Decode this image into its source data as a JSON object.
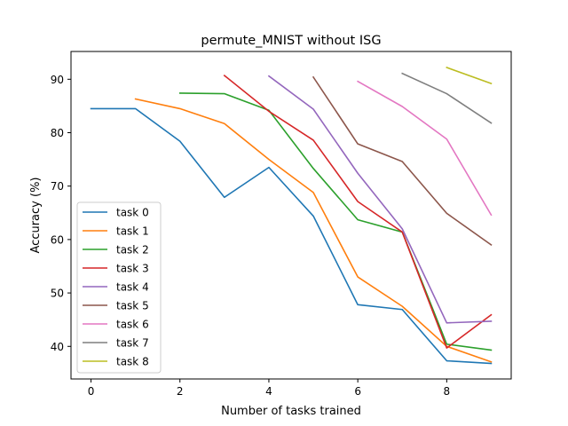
{
  "chart_data": {
    "type": "line",
    "title": "permute_MNIST without ISG",
    "xlabel": "Number of tasks trained",
    "ylabel": "Accuracy (%)",
    "xlim": [
      -0.45,
      9.45
    ],
    "ylim": [
      33.9,
      95.2
    ],
    "xticks": [
      0,
      2,
      4,
      6,
      8
    ],
    "yticks": [
      40,
      50,
      60,
      70,
      80,
      90
    ],
    "grid": false,
    "legend_position": "center-left",
    "series": [
      {
        "name": "task 0",
        "color": "#1f77b4",
        "x": [
          0,
          1,
          2,
          3,
          4,
          5,
          6,
          7,
          8,
          9
        ],
        "y": [
          84.5,
          84.5,
          78.4,
          67.9,
          73.5,
          64.4,
          47.8,
          46.9,
          37.3,
          36.8
        ]
      },
      {
        "name": "task 1",
        "color": "#ff7f0e",
        "x": [
          1,
          2,
          3,
          4,
          5,
          6,
          7,
          8,
          9
        ],
        "y": [
          86.3,
          84.5,
          81.7,
          75.0,
          68.8,
          53.0,
          47.5,
          40.0,
          37.1
        ]
      },
      {
        "name": "task 2",
        "color": "#2ca02c",
        "x": [
          2,
          3,
          4,
          5,
          6,
          7,
          8,
          9
        ],
        "y": [
          87.4,
          87.3,
          84.2,
          73.3,
          63.7,
          61.4,
          40.4,
          39.3
        ]
      },
      {
        "name": "task 3",
        "color": "#d62728",
        "x": [
          3,
          4,
          5,
          6,
          7,
          8,
          9
        ],
        "y": [
          90.7,
          84.0,
          78.6,
          67.1,
          61.4,
          39.7,
          45.9
        ]
      },
      {
        "name": "task 4",
        "color": "#9467bd",
        "x": [
          4,
          5,
          6,
          7,
          8,
          9
        ],
        "y": [
          90.6,
          84.4,
          72.4,
          62.0,
          44.4,
          44.7
        ]
      },
      {
        "name": "task 5",
        "color": "#8c564b",
        "x": [
          5,
          6,
          7,
          8,
          9
        ],
        "y": [
          90.4,
          77.9,
          74.6,
          64.9,
          59.0
        ]
      },
      {
        "name": "task 6",
        "color": "#e377c2",
        "x": [
          6,
          7,
          8,
          9
        ],
        "y": [
          89.6,
          84.9,
          78.8,
          64.6
        ]
      },
      {
        "name": "task 7",
        "color": "#7f7f7f",
        "x": [
          7,
          8,
          9
        ],
        "y": [
          91.1,
          87.3,
          81.8
        ]
      },
      {
        "name": "task 8",
        "color": "#bcbd22",
        "x": [
          8,
          9
        ],
        "y": [
          92.2,
          89.2
        ]
      }
    ]
  }
}
